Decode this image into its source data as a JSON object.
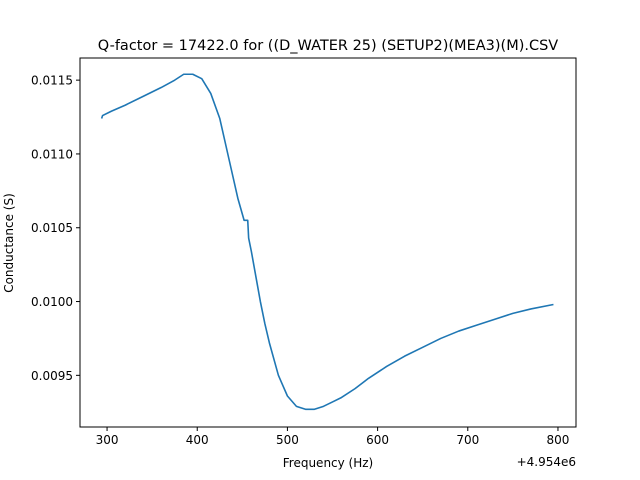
{
  "chart_data": {
    "type": "line",
    "title": "Q-factor = 17422.0 for ((D_WATER 25) (SETUP2)(MEA3)(M).CSV",
    "xlabel": "Frequency (Hz)",
    "ylabel": "Conductance (S)",
    "x_offset_label": "+4.954e6",
    "xlim": [
      270,
      820
    ],
    "ylim": [
      0.00915,
      0.01165
    ],
    "x_ticks": [
      300,
      400,
      500,
      600,
      700,
      800
    ],
    "x_tick_labels": [
      "300",
      "400",
      "500",
      "600",
      "700",
      "800"
    ],
    "y_ticks": [
      0.0095,
      0.01,
      0.0105,
      0.011,
      0.0115
    ],
    "y_tick_labels": [
      "0.0095",
      "0.0100",
      "0.0105",
      "0.0110",
      "0.0115"
    ],
    "grid": false,
    "line_color": "#1f77b4",
    "series": [
      {
        "x": [
          294,
          295,
          305,
          320,
          340,
          360,
          375,
          385,
          395,
          405,
          415,
          425,
          435,
          445,
          452,
          456,
          457,
          460,
          465,
          470,
          475,
          480,
          490,
          500,
          510,
          520,
          530,
          540,
          550,
          560,
          575,
          590,
          610,
          630,
          650,
          670,
          690,
          710,
          730,
          750,
          770,
          795
        ],
        "y": [
          0.01124,
          0.01126,
          0.01129,
          0.01133,
          0.01139,
          0.01145,
          0.0115,
          0.01154,
          0.01154,
          0.01151,
          0.01141,
          0.01124,
          0.01097,
          0.0107,
          0.01055,
          0.01055,
          0.01043,
          0.01034,
          0.01017,
          0.01,
          0.00985,
          0.00972,
          0.0095,
          0.00936,
          0.00929,
          0.00927,
          0.00927,
          0.00929,
          0.00932,
          0.00935,
          0.00941,
          0.00948,
          0.00956,
          0.00963,
          0.00969,
          0.00975,
          0.0098,
          0.00984,
          0.00988,
          0.00992,
          0.00995,
          0.00998
        ]
      }
    ]
  }
}
